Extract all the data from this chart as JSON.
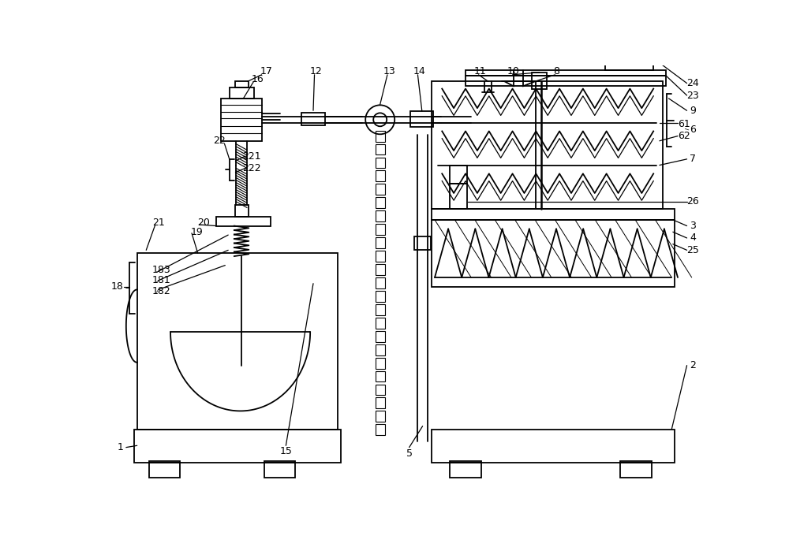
{
  "bg_color": "#ffffff",
  "lc": "#000000",
  "lw": 1.3,
  "fig_w": 10.0,
  "fig_h": 6.94
}
